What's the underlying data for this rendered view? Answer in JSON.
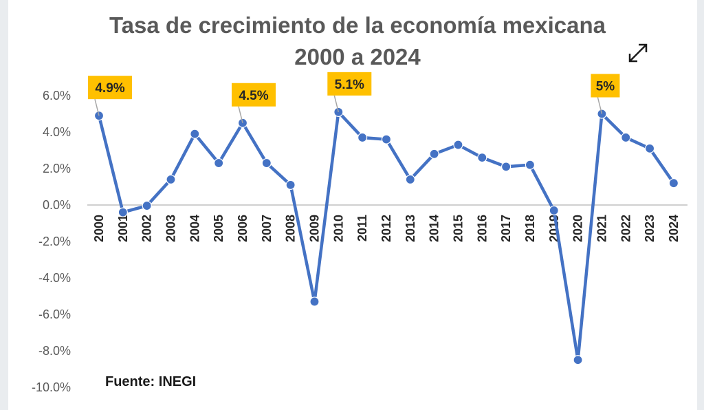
{
  "chart_data": {
    "type": "line",
    "title_line1": "Tasa de crecimiento de la economía mexicana",
    "title_line2": "2000 a 2024",
    "source": "Fuente: INEGI",
    "categories": [
      "2000",
      "2001",
      "2002",
      "2003",
      "2004",
      "2005",
      "2006",
      "2007",
      "2008",
      "2009",
      "2010",
      "2011",
      "2012",
      "2013",
      "2014",
      "2015",
      "2016",
      "2017",
      "2018",
      "2019",
      "2020",
      "2021",
      "2022",
      "2023",
      "2024"
    ],
    "series": [
      {
        "values": [
          4.9,
          -0.4,
          -0.04,
          1.4,
          3.9,
          2.3,
          4.5,
          2.3,
          1.1,
          -5.3,
          5.1,
          3.7,
          3.6,
          1.4,
          2.8,
          3.3,
          2.6,
          2.1,
          2.2,
          -0.3,
          -8.5,
          5.0,
          3.7,
          3.1,
          1.2
        ],
        "color": "#4472c4"
      }
    ],
    "y_ticks": [
      "6.0%",
      "4.0%",
      "2.0%",
      "0.0%",
      "-2.0%",
      "-4.0%",
      "-6.0%",
      "-8.0%",
      "-10.0%"
    ],
    "ylim": [
      -10,
      6
    ],
    "callouts": [
      {
        "year": "2000",
        "label": "4.9%"
      },
      {
        "year": "2006",
        "label": "4.5%"
      },
      {
        "year": "2010",
        "label": "5.1%"
      },
      {
        "year": "2021",
        "label": "5%"
      }
    ],
    "callout_color": "#ffc000",
    "grid": false,
    "legend": "none"
  },
  "ui": {
    "expand_icon": "expand-arrows-icon"
  }
}
